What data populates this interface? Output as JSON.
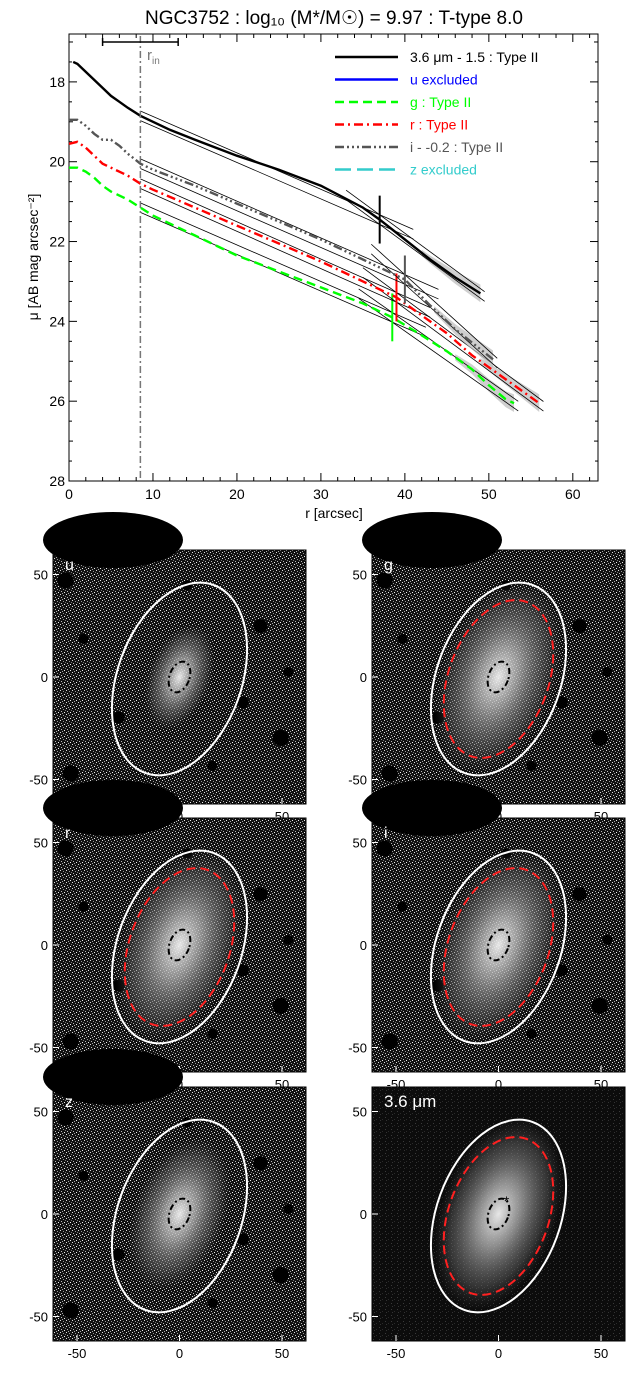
{
  "chart_data": [
    {
      "type": "line",
      "title": "NGC3752 : log₁₀ (M*/M☉) = 9.97 : T-type 8.0",
      "xlabel": "r [arcsec]",
      "ylabel": "μ [AB mag arcsec⁻²]",
      "xlim": [
        0,
        63
      ],
      "ylim": [
        28,
        16.8
      ],
      "y_inverted": true,
      "xticks": [
        "0",
        "10",
        "20",
        "30",
        "40",
        "50",
        "60"
      ],
      "yticks": [
        "18",
        "20",
        "22",
        "24",
        "26",
        "28"
      ],
      "grid": false,
      "legend_position": "top-right",
      "r_in": {
        "label": "r",
        "subscript": "in",
        "value": 8.5,
        "bar": [
          4,
          13
        ]
      },
      "series": [
        {
          "name": "3.6 μm - 1.5 : Type II",
          "color": "#000000",
          "dash": "solid",
          "break": 37,
          "x": [
            0.5,
            1,
            2,
            3,
            4,
            5,
            6,
            7,
            8.5,
            10,
            12,
            15,
            20,
            25,
            30,
            35,
            37,
            40,
            43,
            46,
            49
          ],
          "y": [
            17.5,
            17.55,
            17.75,
            17.95,
            18.15,
            18.35,
            18.5,
            18.65,
            18.85,
            19.0,
            19.2,
            19.45,
            19.85,
            20.2,
            20.6,
            21.15,
            21.45,
            21.95,
            22.45,
            22.9,
            23.3
          ]
        },
        {
          "name": "u excluded",
          "color": "#0000ff",
          "dash": "solid",
          "x": [],
          "y": []
        },
        {
          "name": "g : Type II",
          "color": "#00ff00",
          "dash": "dashed",
          "break": 38.5,
          "x": [
            0,
            1,
            2,
            3,
            4,
            5,
            6,
            7,
            8.5,
            10,
            15,
            20,
            25,
            30,
            35,
            38.5,
            42,
            45,
            48,
            50,
            52,
            53
          ],
          "y": [
            20.15,
            20.15,
            20.25,
            20.4,
            20.6,
            20.75,
            20.85,
            20.95,
            21.15,
            21.35,
            21.85,
            22.35,
            22.75,
            23.15,
            23.55,
            23.9,
            24.35,
            24.75,
            25.2,
            25.6,
            25.95,
            26.05
          ]
        },
        {
          "name": "r : Type II",
          "color": "#ff0000",
          "dash": "dashdot",
          "break": 39,
          "x": [
            0,
            1,
            2,
            3,
            4,
            5,
            6,
            7,
            8.5,
            10,
            15,
            20,
            25,
            30,
            35,
            39,
            42,
            45,
            48,
            51,
            54,
            56
          ],
          "y": [
            19.55,
            19.5,
            19.65,
            19.85,
            20.05,
            20.15,
            20.25,
            20.35,
            20.55,
            20.7,
            21.15,
            21.6,
            22.05,
            22.5,
            23.0,
            23.4,
            23.85,
            24.3,
            24.85,
            25.3,
            25.75,
            26.05
          ]
        },
        {
          "name": "i - -0.2 : Type II",
          "color": "#555555",
          "dash": "dashdotdotdot",
          "break": 40,
          "x": [
            0,
            1,
            2,
            3,
            4,
            5,
            6,
            7,
            8.5,
            10,
            15,
            20,
            25,
            30,
            35,
            40,
            43,
            46,
            49,
            50.5
          ],
          "y": [
            18.95,
            18.95,
            19.1,
            19.3,
            19.45,
            19.45,
            19.6,
            19.8,
            20.05,
            20.2,
            20.6,
            21.05,
            21.5,
            21.95,
            22.45,
            22.95,
            23.6,
            24.2,
            24.7,
            24.95
          ]
        },
        {
          "name": "z excluded",
          "color": "#33cccc",
          "dash": "longdash",
          "x": [],
          "y": []
        }
      ]
    },
    {
      "type": "image",
      "panel": "u",
      "xticks": [
        "-50",
        "0",
        "50"
      ],
      "yticks": [
        "50",
        "0",
        "-50"
      ],
      "dark": false,
      "outer_ellipse": true,
      "break_ellipse": false,
      "inner_ellipse": true
    },
    {
      "type": "image",
      "panel": "g",
      "xticks": [
        "-50",
        "0",
        "50"
      ],
      "yticks": [
        "50",
        "0",
        "-50"
      ],
      "dark": false,
      "outer_ellipse": true,
      "break_ellipse": true,
      "inner_ellipse": true
    },
    {
      "type": "image",
      "panel": "r",
      "xticks": [
        "-50",
        "0",
        "50"
      ],
      "yticks": [
        "50",
        "0",
        "-50"
      ],
      "dark": false,
      "outer_ellipse": true,
      "break_ellipse": true,
      "inner_ellipse": true
    },
    {
      "type": "image",
      "panel": "i",
      "xticks": [
        "-50",
        "0",
        "50"
      ],
      "yticks": [
        "50",
        "0",
        "-50"
      ],
      "dark": false,
      "outer_ellipse": true,
      "break_ellipse": true,
      "inner_ellipse": true
    },
    {
      "type": "image",
      "panel": "z",
      "xticks": [
        "-50",
        "0",
        "50"
      ],
      "yticks": [
        "50",
        "0",
        "-50"
      ],
      "dark": false,
      "outer_ellipse": true,
      "break_ellipse": false,
      "inner_ellipse": true
    },
    {
      "type": "image",
      "panel": "3.6 μm",
      "xticks": [
        "-50",
        "0",
        "50"
      ],
      "yticks": [
        "50",
        "0",
        "-50"
      ],
      "dark": true,
      "outer_ellipse": true,
      "break_ellipse": true,
      "inner_ellipse": true,
      "marker": "*"
    }
  ]
}
